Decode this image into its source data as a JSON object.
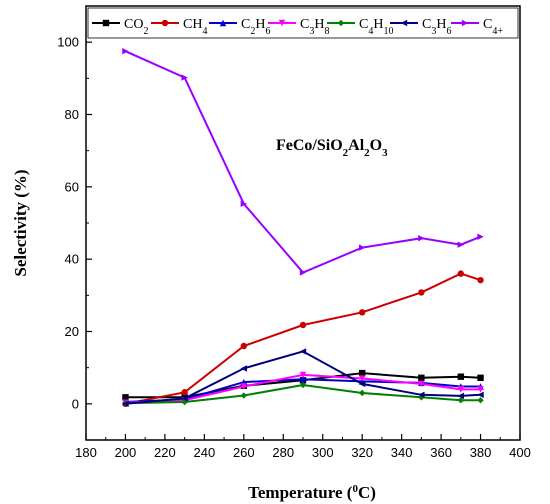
{
  "chart_data": {
    "type": "line",
    "title": "",
    "xlabel": {
      "main": "Temperature (",
      "sup": "0",
      "tail": "C)"
    },
    "ylabel": "Selectivity (%)",
    "xlim": [
      180,
      400
    ],
    "ylim": [
      -10,
      110
    ],
    "xticks": [
      "180",
      "200",
      "220",
      "240",
      "260",
      "280",
      "300",
      "320",
      "340",
      "360",
      "380",
      "400"
    ],
    "yticks": [
      "0",
      "20",
      "40",
      "60",
      "80",
      "100"
    ],
    "grid": false,
    "legend_position": "top",
    "annotation": {
      "parts": [
        "FeCo/SiO",
        "2",
        "Al",
        "2",
        "O",
        "3"
      ]
    },
    "x": [
      200,
      230,
      260,
      290,
      320,
      350,
      370,
      380
    ],
    "series": [
      {
        "name": "CO2",
        "label_parts": [
          "CO",
          "2"
        ],
        "color": "#000000",
        "marker": "square",
        "values": [
          1.8,
          1.8,
          5.0,
          6.5,
          8.5,
          7.2,
          7.5,
          7.2
        ]
      },
      {
        "name": "CH4",
        "label_parts": [
          "CH",
          "4"
        ],
        "color": "#cc0000",
        "marker": "circle",
        "values": [
          0.0,
          3.2,
          16.0,
          21.8,
          25.3,
          30.8,
          36.0,
          34.2
        ]
      },
      {
        "name": "C2H6",
        "label_parts": [
          "C",
          "2",
          "H",
          "6"
        ],
        "color": "#0000cc",
        "marker": "triangle-up",
        "values": [
          0.5,
          1.2,
          6.0,
          6.8,
          6.2,
          5.8,
          4.8,
          4.8
        ]
      },
      {
        "name": "C3H8",
        "label_parts": [
          "C",
          "3",
          "H",
          "8"
        ],
        "color": "#ff00ff",
        "marker": "triangle-down",
        "values": [
          0.3,
          1.0,
          4.8,
          8.0,
          7.0,
          5.5,
          4.0,
          4.0
        ]
      },
      {
        "name": "C4H10",
        "label_parts": [
          "C",
          "4",
          "H",
          "10"
        ],
        "color": "#008000",
        "marker": "diamond",
        "values": [
          0.2,
          0.5,
          2.3,
          5.2,
          3.0,
          1.8,
          1.0,
          1.0
        ]
      },
      {
        "name": "C3H6",
        "label_parts": [
          "C",
          "3",
          "H",
          "6"
        ],
        "color": "#000080",
        "marker": "triangle-left",
        "values": [
          0.0,
          1.5,
          9.8,
          14.5,
          5.5,
          2.5,
          2.2,
          2.5
        ]
      },
      {
        "name": "C4+",
        "label_parts": [
          "C",
          "4+"
        ],
        "color": "#9900ff",
        "marker": "triangle-right",
        "values": [
          97.5,
          90.2,
          55.3,
          36.3,
          43.2,
          45.8,
          44.0,
          46.2
        ]
      }
    ]
  }
}
